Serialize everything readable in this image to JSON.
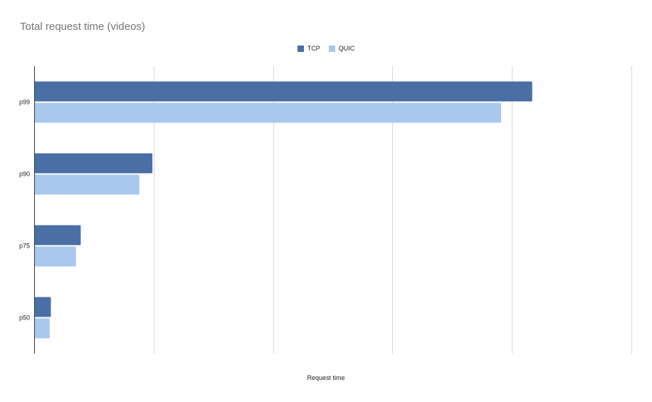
{
  "chart_data": {
    "type": "bar",
    "orientation": "horizontal",
    "title": "Total request time (videos)",
    "xlabel": "Request time",
    "ylabel": "",
    "categories": [
      "p99",
      "p90",
      "p75",
      "p50"
    ],
    "series": [
      {
        "name": "TCP",
        "color": "#4a6fa5",
        "values": [
          4.17,
          0.99,
          0.39,
          0.14
        ]
      },
      {
        "name": "QUIC",
        "color": "#a9c8ee",
        "values": [
          3.91,
          0.88,
          0.35,
          0.13
        ]
      }
    ],
    "xlim": [
      0,
      5
    ],
    "x_gridlines": [
      0,
      1,
      2,
      3,
      4,
      5
    ],
    "x_tick_labels_shown": false,
    "grid": true,
    "legend_position": "top-center"
  }
}
